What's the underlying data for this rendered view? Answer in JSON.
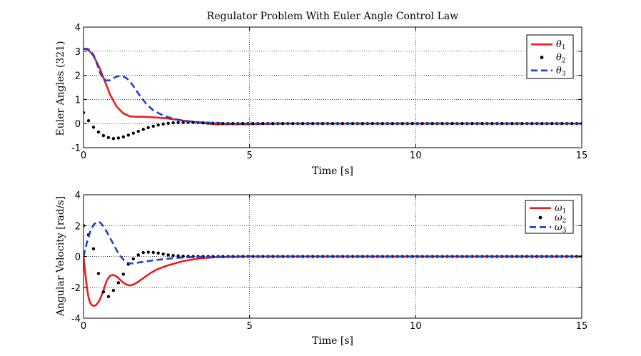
{
  "title": "Regulator Problem With Euler Angle Control Law",
  "chart_data": [
    {
      "type": "line",
      "xlabel": "Time [s]",
      "ylabel": "Euler Angles (321)",
      "xlim": [
        0,
        15
      ],
      "ylim": [
        -1,
        4
      ],
      "xticks": [
        0,
        5,
        10,
        15
      ],
      "yticks": [
        -1,
        0,
        1,
        2,
        3,
        4
      ],
      "grid": true,
      "legend_position": "top-right",
      "series": [
        {
          "name": "θ",
          "subscript": "1",
          "style": "solid",
          "color": "#ee1c1c",
          "x": [
            0,
            0.1,
            0.2,
            0.3,
            0.4,
            0.5,
            0.6,
            0.7,
            0.8,
            1.0,
            1.2,
            1.4,
            1.6,
            1.8,
            2.0,
            2.5,
            3.0,
            3.5,
            4.0,
            5.0,
            6.0,
            8.0,
            10.0,
            12.0,
            15.0
          ],
          "y": [
            3.1,
            3.08,
            2.98,
            2.8,
            2.55,
            2.25,
            1.9,
            1.55,
            1.2,
            0.7,
            0.42,
            0.3,
            0.28,
            0.28,
            0.27,
            0.22,
            0.12,
            0.03,
            -0.03,
            -0.02,
            0.0,
            0.0,
            0.0,
            0.0,
            0.0
          ]
        },
        {
          "name": "θ",
          "subscript": "2",
          "style": "dots",
          "color": "#000000",
          "x": [
            0.0,
            0.15,
            0.3,
            0.45,
            0.6,
            0.75,
            0.9,
            1.05,
            1.2,
            1.35,
            1.5,
            1.65,
            1.8,
            1.95,
            2.1,
            2.25,
            2.4,
            2.55,
            2.7,
            2.85,
            3.0,
            3.15,
            3.3,
            3.45,
            3.6,
            3.75,
            3.9,
            4.05,
            4.2,
            4.35,
            4.5,
            4.65,
            4.8,
            4.95,
            5.1,
            5.25,
            5.4,
            5.55,
            5.7,
            5.85,
            6.0,
            6.15,
            6.3,
            6.45,
            6.6,
            6.75,
            6.9,
            7.05,
            7.2,
            7.35,
            7.5,
            7.65,
            7.8,
            7.95,
            8.1,
            8.25,
            8.4,
            8.55,
            8.7,
            8.85,
            9.0,
            9.15,
            9.3,
            9.45,
            9.6,
            9.75,
            9.9,
            10.05,
            10.2,
            10.35,
            10.5,
            10.65,
            10.8,
            10.95,
            11.1,
            11.25,
            11.4,
            11.55,
            11.7,
            11.85,
            12.0,
            12.15,
            12.3,
            12.45,
            12.6,
            12.75,
            12.9,
            13.05,
            13.2,
            13.35,
            13.5,
            13.65,
            13.8,
            13.95,
            14.1,
            14.25,
            14.4,
            14.55,
            14.7,
            14.85,
            15.0
          ],
          "y": [
            0.45,
            0.12,
            -0.15,
            -0.35,
            -0.5,
            -0.58,
            -0.62,
            -0.6,
            -0.55,
            -0.48,
            -0.4,
            -0.32,
            -0.24,
            -0.17,
            -0.11,
            -0.06,
            -0.02,
            0.01,
            0.03,
            0.04,
            0.05,
            0.05,
            0.05,
            0.04,
            0.03,
            0.02,
            0.01,
            0.01,
            0.0,
            0.0,
            0.0,
            0.0,
            0.0,
            0.0,
            0.0,
            0.0,
            0.0,
            0.0,
            0.0,
            0.0,
            0.0,
            0.0,
            0.0,
            0.0,
            0.0,
            0.0,
            0.0,
            0.0,
            0.0,
            0.0,
            0.0,
            0.0,
            0.0,
            0.0,
            0.0,
            0.0,
            0.0,
            0.0,
            0.0,
            0.0,
            0.0,
            0.0,
            0.0,
            0.0,
            0.0,
            0.0,
            0.0,
            0.0,
            0.0,
            0.0,
            0.0,
            0.0,
            0.0,
            0.0,
            0.0,
            0.0,
            0.0,
            0.0,
            0.0,
            0.0,
            0.0,
            0.0,
            0.0,
            0.0,
            0.0,
            0.0,
            0.0,
            0.0,
            0.0,
            0.0,
            0.0,
            0.0,
            0.0,
            0.0,
            0.0,
            0.0,
            0.0,
            0.0,
            0.0,
            0.0,
            0.0
          ]
        },
        {
          "name": "θ",
          "subscript": "3",
          "style": "dashed",
          "color": "#1f3fd6",
          "x": [
            0,
            0.1,
            0.2,
            0.3,
            0.4,
            0.5,
            0.6,
            0.7,
            0.8,
            0.9,
            1.0,
            1.1,
            1.2,
            1.3,
            1.4,
            1.5,
            1.7,
            1.9,
            2.1,
            2.4,
            2.7,
            3.0,
            3.5,
            4.0,
            4.5,
            5.0,
            6.0,
            8.0,
            10.0,
            12.0,
            15.0
          ],
          "y": [
            3.1,
            3.1,
            3.05,
            2.85,
            2.5,
            2.1,
            1.85,
            1.78,
            1.8,
            1.88,
            1.95,
            1.98,
            1.95,
            1.88,
            1.75,
            1.55,
            1.15,
            0.8,
            0.55,
            0.33,
            0.2,
            0.12,
            0.05,
            0.02,
            0.0,
            0.0,
            0.0,
            0.0,
            0.0,
            0.0,
            0.0
          ]
        }
      ]
    },
    {
      "type": "line",
      "xlabel": "Time [s]",
      "ylabel": "Angular Velocity [rad/s]",
      "xlim": [
        0,
        15
      ],
      "ylim": [
        -4,
        4
      ],
      "xticks": [
        0,
        5,
        10,
        15
      ],
      "yticks": [
        -4,
        -2,
        0,
        2,
        4
      ],
      "grid": true,
      "legend_position": "top-right",
      "series": [
        {
          "name": "ω",
          "subscript": "1",
          "style": "solid",
          "color": "#ee1c1c",
          "x": [
            0,
            0.05,
            0.1,
            0.15,
            0.2,
            0.25,
            0.3,
            0.35,
            0.4,
            0.45,
            0.5,
            0.6,
            0.7,
            0.8,
            0.9,
            1.0,
            1.1,
            1.2,
            1.3,
            1.4,
            1.5,
            1.6,
            1.8,
            2.0,
            2.2,
            2.5,
            3.0,
            3.5,
            4.0,
            5.0,
            6.0,
            8.0,
            10.0,
            12.0,
            15.0
          ],
          "y": [
            0.0,
            -1.0,
            -2.0,
            -2.65,
            -3.0,
            -3.15,
            -3.2,
            -3.18,
            -3.1,
            -2.95,
            -2.75,
            -2.2,
            -1.55,
            -1.25,
            -1.2,
            -1.3,
            -1.5,
            -1.7,
            -1.82,
            -1.88,
            -1.82,
            -1.7,
            -1.4,
            -1.1,
            -0.85,
            -0.6,
            -0.3,
            -0.12,
            -0.04,
            0.0,
            0.0,
            0.0,
            0.0,
            0.0,
            0.0
          ]
        },
        {
          "name": "ω",
          "subscript": "2",
          "style": "dots",
          "color": "#000000",
          "x": [
            0.0,
            0.15,
            0.3,
            0.45,
            0.6,
            0.75,
            0.9,
            1.05,
            1.2,
            1.35,
            1.5,
            1.65,
            1.8,
            1.95,
            2.1,
            2.25,
            2.4,
            2.55,
            2.7,
            2.85,
            3.0,
            3.15,
            3.3,
            3.45,
            3.6,
            3.75,
            3.9,
            4.05,
            4.2,
            4.35,
            4.5,
            4.65,
            4.8,
            4.95,
            5.1,
            5.25,
            5.4,
            5.55,
            5.7,
            5.85,
            6.0,
            6.15,
            6.3,
            6.45,
            6.6,
            6.75,
            6.9,
            7.05,
            7.2,
            7.35,
            7.5,
            7.65,
            7.8,
            7.95,
            8.1,
            8.25,
            8.4,
            8.55,
            8.7,
            8.85,
            9.0,
            9.15,
            9.3,
            9.45,
            9.6,
            9.75,
            9.9,
            10.05,
            10.2,
            10.35,
            10.5,
            10.65,
            10.8,
            10.95,
            11.1,
            11.25,
            11.4,
            11.55,
            11.7,
            11.85,
            12.0,
            12.15,
            12.3,
            12.45,
            12.6,
            12.75,
            12.9,
            13.05,
            13.2,
            13.35,
            13.5,
            13.65,
            13.8,
            13.95,
            14.1,
            14.25,
            14.4,
            14.55,
            14.7,
            14.85,
            15.0
          ],
          "y": [
            2.0,
            1.4,
            0.5,
            -1.1,
            -2.3,
            -2.6,
            -2.2,
            -1.7,
            -1.15,
            -0.5,
            -0.15,
            0.1,
            0.25,
            0.28,
            0.26,
            0.22,
            0.16,
            0.1,
            0.06,
            0.04,
            0.02,
            0.01,
            0.0,
            0.0,
            0.0,
            0.0,
            0.0,
            0.0,
            0.0,
            0.0,
            0.0,
            0.0,
            0.0,
            0.0,
            0.0,
            0.0,
            0.0,
            0.0,
            0.0,
            0.0,
            0.0,
            0.0,
            0.0,
            0.0,
            0.0,
            0.0,
            0.0,
            0.0,
            0.0,
            0.0,
            0.0,
            0.0,
            0.0,
            0.0,
            0.0,
            0.0,
            0.0,
            0.0,
            0.0,
            0.0,
            0.0,
            0.0,
            0.0,
            0.0,
            0.0,
            0.0,
            0.0,
            0.0,
            0.0,
            0.0,
            0.0,
            0.0,
            0.0,
            0.0,
            0.0,
            0.0,
            0.0,
            0.0,
            0.0,
            0.0,
            0.0,
            0.0,
            0.0,
            0.0,
            0.0,
            0.0,
            0.0,
            0.0,
            0.0,
            0.0,
            0.0,
            0.0,
            0.0,
            0.0,
            0.0,
            0.0,
            0.0,
            0.0,
            0.0,
            0.0,
            0.0
          ]
        },
        {
          "name": "ω",
          "subscript": "3",
          "style": "dashed",
          "color": "#1f3fd6",
          "x": [
            0,
            0.1,
            0.2,
            0.3,
            0.4,
            0.5,
            0.6,
            0.7,
            0.8,
            0.9,
            1.0,
            1.1,
            1.2,
            1.3,
            1.4,
            1.5,
            1.7,
            2.0,
            2.3,
            2.6,
            3.0,
            3.5,
            4.0,
            5.0,
            6.0,
            8.0,
            10.0,
            12.0,
            15.0
          ],
          "y": [
            0.0,
            0.9,
            1.6,
            2.05,
            2.25,
            2.2,
            1.95,
            1.6,
            1.2,
            0.8,
            0.4,
            0.05,
            -0.2,
            -0.38,
            -0.45,
            -0.45,
            -0.38,
            -0.28,
            -0.2,
            -0.13,
            -0.07,
            -0.03,
            -0.01,
            0.0,
            0.0,
            0.0,
            0.0,
            0.0,
            0.0
          ]
        }
      ]
    }
  ]
}
